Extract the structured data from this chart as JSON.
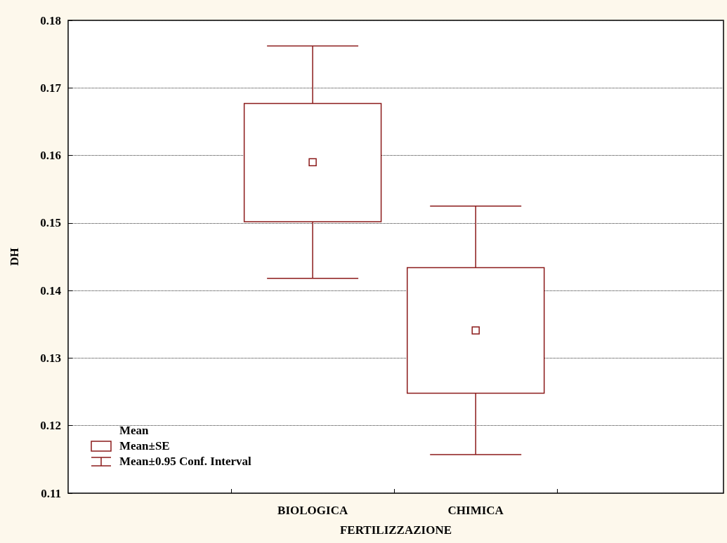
{
  "chart_data": {
    "type": "box",
    "xlabel": "FERTILIZZAZIONE",
    "ylabel": "DH",
    "categories": [
      "BIOLOGICA",
      "CHIMICA"
    ],
    "series": [
      {
        "color": "#8b1a1a",
        "boxes": [
          {
            "low": 0.1418,
            "q1": 0.1502,
            "median": 0.159,
            "q3": 0.1677,
            "high": 0.1762
          },
          {
            "low": 0.1157,
            "q1": 0.1248,
            "median": 0.1341,
            "q3": 0.1434,
            "high": 0.1525
          }
        ]
      }
    ],
    "ylim": [
      0.11,
      0.18
    ],
    "yticks": [
      0.11,
      0.12,
      0.13,
      0.14,
      0.15,
      0.16,
      0.17,
      0.18
    ],
    "grid": "y",
    "annotations": [
      "Mean",
      "Mean±SE",
      "Mean±0.95 Conf. Interval"
    ]
  }
}
